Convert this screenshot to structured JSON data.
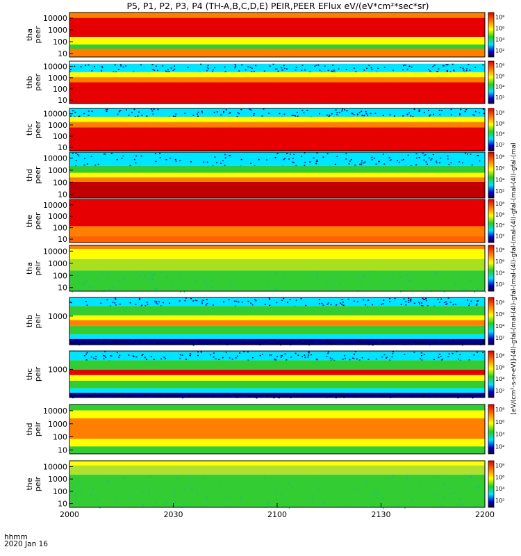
{
  "title": "P5, P1, P2, P3, P4 (TH-A,B,C,D,E) PEIR,PEER EFlux eV/(eV*cm²*sec*sr)",
  "time_axis": {
    "ticks": [
      "2000",
      "2030",
      "2100",
      "2130",
      "2200"
    ]
  },
  "footer": {
    "format_label": "hhmm",
    "date": "2020 Jan 16"
  },
  "colorbar": {
    "tick_labels": [
      "10²",
      "10⁴",
      "10⁶",
      "10⁸"
    ],
    "unit_label": "[eV/(cm²-s-sr-eV)]-(4l)-gfal-(mal-(4l)-gfal-(mal-(4l)-gfal-(mal-(4l)-gfal-(mal-(4l)-gfal-(mal"
  },
  "colors": {
    "red": "#e60000",
    "orange": "#ff8000",
    "yellow": "#ffff00",
    "green": "#33cc33",
    "cyan": "#00e5ff",
    "blue": "#0000ff",
    "navy": "#000080"
  },
  "chart_data": [
    {
      "type": "heatmap",
      "probe": "tha",
      "species": "peer",
      "ylabel": [
        "tha",
        "peer"
      ],
      "yticks": [
        "10000",
        "1000",
        "100",
        "10"
      ],
      "ylim": [
        5,
        30000
      ],
      "dominant": "red",
      "bands": [
        "orange (lowest)",
        "green (~15 eV)",
        "red (100-10000 eV)",
        "orange (top)"
      ]
    },
    {
      "type": "heatmap",
      "probe": "thb",
      "species": "peer",
      "ylabel": [
        "thb",
        "peer"
      ],
      "yticks": [
        "10000",
        "1000",
        "100",
        "10"
      ],
      "ylim": [
        5,
        30000
      ],
      "dominant": "red",
      "bands": [
        "red (10-500 eV)",
        "yellow (~1000 eV)",
        "cyan/blue (2000-10000 eV)",
        "white (top)"
      ]
    },
    {
      "type": "heatmap",
      "probe": "thc",
      "species": "peer",
      "ylabel": [
        "thc",
        "peer"
      ],
      "yticks": [
        "10000",
        "1000",
        "100",
        "10"
      ],
      "ylim": [
        5,
        30000
      ],
      "dominant": "red",
      "bands": [
        "red (10-500 eV)",
        "yellow (~1000 eV)",
        "cyan/blue (2000-10000 eV)"
      ]
    },
    {
      "type": "heatmap",
      "probe": "thd",
      "species": "peer",
      "ylabel": [
        "thd",
        "peer"
      ],
      "yticks": [
        "10000",
        "1000",
        "100",
        "10"
      ],
      "ylim": [
        5,
        30000
      ],
      "dominant": "red",
      "bands": [
        "dark red (10-200 eV)",
        "orange/yellow (~500 eV)",
        "green (~1000 eV)",
        "cyan/blue (above)"
      ]
    },
    {
      "type": "heatmap",
      "probe": "the",
      "species": "peer",
      "ylabel": [
        "the",
        "peer"
      ],
      "yticks": [
        "10000",
        "1000",
        "100",
        "10"
      ],
      "ylim": [
        5,
        30000
      ],
      "dominant": "red",
      "bands": [
        "orange (low)",
        "red (100-10000 eV)"
      ]
    },
    {
      "type": "heatmap",
      "probe": "tha",
      "species": "peir",
      "ylabel": [
        "tha",
        "peir"
      ],
      "yticks": [
        "10000",
        "1000",
        "100",
        "10"
      ],
      "ylim": [
        5,
        30000
      ],
      "dominant": "green",
      "bands": [
        "green (10-100 eV)",
        "yellow (1000-10000 eV)",
        "orange (top)"
      ]
    },
    {
      "type": "heatmap",
      "probe": "thb",
      "species": "peir",
      "ylabel": [
        "thb",
        "peir"
      ],
      "yticks": [
        "1000"
      ],
      "ylim": [
        10,
        20000
      ],
      "dominant": "green",
      "bands": [
        "navy/blue (bottom)",
        "green",
        "orange/red (~500 eV)",
        "green",
        "cyan (top)"
      ]
    },
    {
      "type": "heatmap",
      "probe": "thc",
      "species": "peir",
      "ylabel": [
        "thc",
        "peir"
      ],
      "yticks": [
        "1000"
      ],
      "ylim": [
        10,
        20000
      ],
      "dominant": "green",
      "bands": [
        "navy/blue (bottom)",
        "green",
        "red (~500 eV)",
        "green",
        "cyan (top)"
      ]
    },
    {
      "type": "heatmap",
      "probe": "thd",
      "species": "peir",
      "ylabel": [
        "thd",
        "peir"
      ],
      "yticks": [
        "10000",
        "1000",
        "100",
        "10"
      ],
      "ylim": [
        5,
        30000
      ],
      "dominant": "orange",
      "bands": [
        "green (low)",
        "orange/red (100-1000 eV)",
        "yellow",
        "green (top)"
      ]
    },
    {
      "type": "heatmap",
      "probe": "the",
      "species": "peir",
      "ylabel": [
        "the",
        "peir"
      ],
      "yticks": [
        "10000",
        "1000",
        "100",
        "10"
      ],
      "ylim": [
        5,
        30000
      ],
      "dominant": "green",
      "bands": [
        "green (10-1000 eV)",
        "yellow (~10000 eV)"
      ]
    }
  ]
}
